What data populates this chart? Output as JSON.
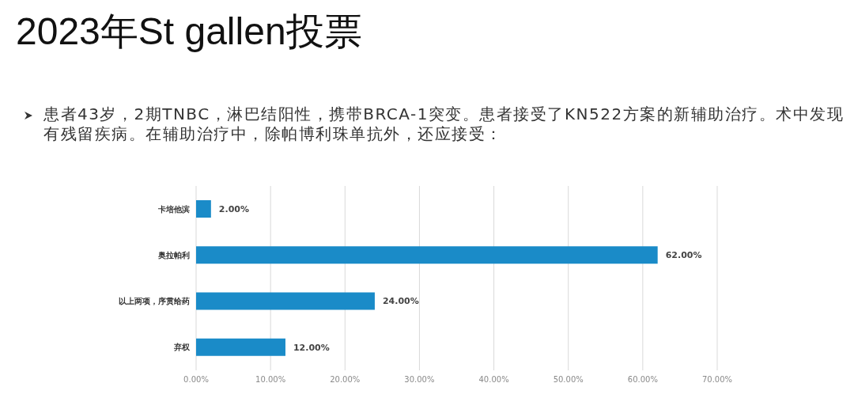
{
  "chart_data": {
    "type": "bar",
    "orientation": "horizontal",
    "title": "2023年St gallen投票",
    "subtitle": "患者43岁，2期TNBC，淋巴结阳性，携带BRCA-1突变。患者接受了KN522方案的新辅助治疗。术中发现有残留疾病。在辅助治疗中，除帕博利珠单抗外，还应接受：",
    "categories": [
      "卡培他滨",
      "奥拉帕利",
      "以上两项，序贯给药",
      "弃权"
    ],
    "values": [
      2,
      62,
      24,
      12
    ],
    "color": "#1a8bc8",
    "value_labels": [
      "2.00%",
      "62.00%",
      "24.00%",
      "12.00%"
    ],
    "xlim": [
      0,
      70
    ],
    "xticks": [
      {
        "value": 0,
        "label": "0.00%"
      },
      {
        "value": 10,
        "label": "10.00%"
      },
      {
        "value": 20,
        "label": "20.00%"
      },
      {
        "value": 30,
        "label": "30.00%"
      },
      {
        "value": 40,
        "label": "40.00%"
      },
      {
        "value": 50,
        "label": "50.00%"
      },
      {
        "value": 60,
        "label": "60.00%"
      },
      {
        "value": 70,
        "label": "70.00%"
      }
    ],
    "grid": "x"
  }
}
